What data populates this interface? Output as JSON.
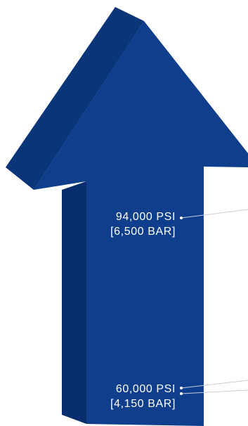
{
  "diagram": {
    "colors": {
      "arrow_face": "#0f3f8c",
      "arrow_side": "#072d6d",
      "arrow_top_edge": "#1a4c9b",
      "leader_line": "#c7cfd9",
      "label_text": "#ffffff",
      "background": "#ffffff"
    },
    "pressure_levels": [
      {
        "psi": "94,000 PSI",
        "bar": "[6,500 BAR]"
      },
      {
        "psi": "60,000 PSI",
        "bar": "[4,150 BAR]"
      }
    ]
  }
}
